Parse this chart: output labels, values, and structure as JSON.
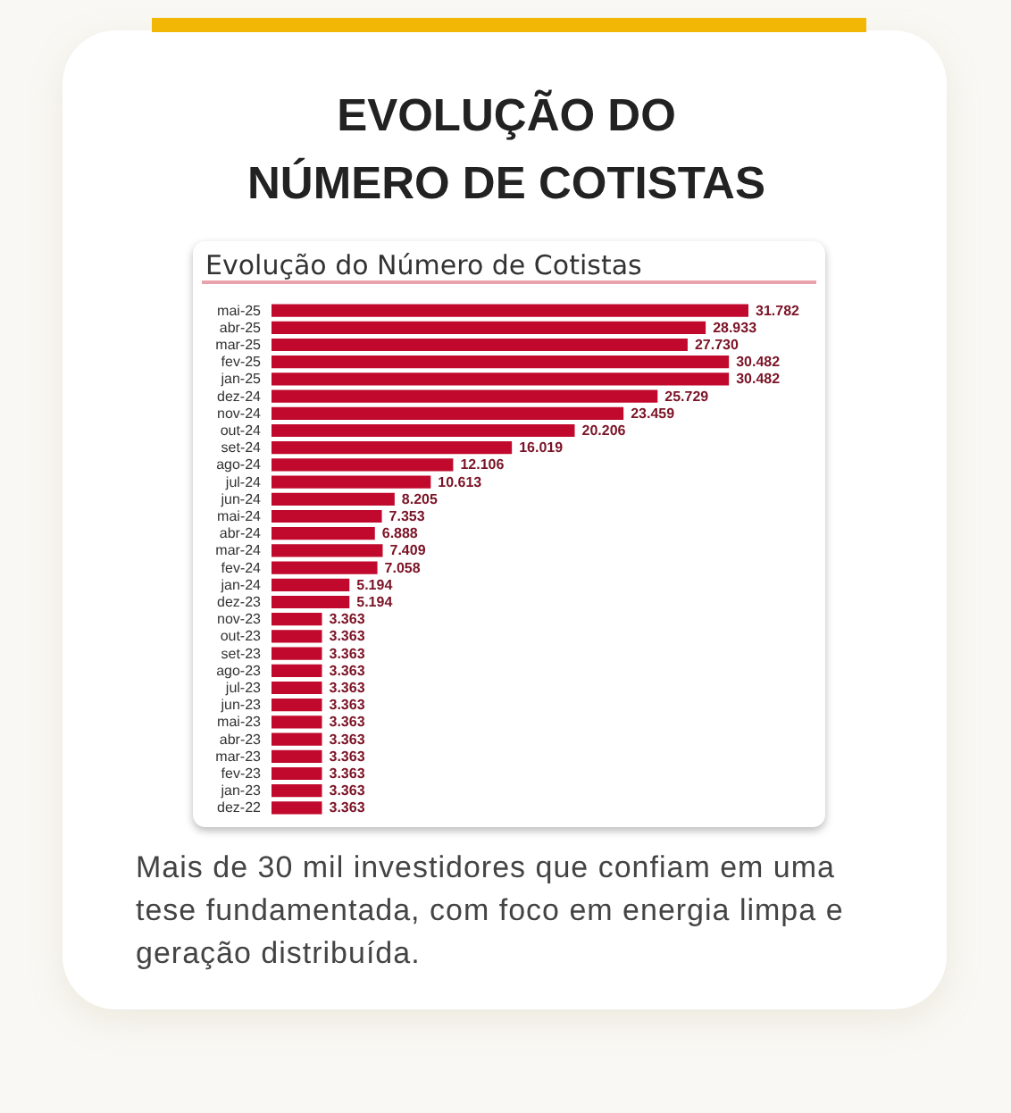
{
  "chart_data": {
    "type": "bar",
    "orientation": "horizontal",
    "title": "EVOLUÇÃO DO NÚMERO DE COTISTAS",
    "subtitle": "Evolução do Número de Cotistas",
    "categories": [
      "mai-25",
      "abr-25",
      "mar-25",
      "fev-25",
      "jan-25",
      "dez-24",
      "nov-24",
      "out-24",
      "set-24",
      "ago-24",
      "jul-24",
      "jun-24",
      "mai-24",
      "abr-24",
      "mar-24",
      "fev-24",
      "jan-24",
      "dez-23",
      "nov-23",
      "out-23",
      "set-23",
      "ago-23",
      "jul-23",
      "jun-23",
      "mai-23",
      "abr-23",
      "mar-23",
      "fev-23",
      "jan-23",
      "dez-22"
    ],
    "values": [
      31782,
      28933,
      27730,
      30482,
      30482,
      25729,
      23459,
      20206,
      16019,
      12106,
      10613,
      8205,
      7353,
      6888,
      7409,
      7058,
      5194,
      5194,
      3363,
      3363,
      3363,
      3363,
      3363,
      3363,
      3363,
      3363,
      3363,
      3363,
      3363,
      3363
    ],
    "value_labels": [
      "31.782",
      "28.933",
      "27.730",
      "30.482",
      "30.482",
      "25.729",
      "23.459",
      "20.206",
      "16.019",
      "12.106",
      "10.613",
      "8.205",
      "7.353",
      "6.888",
      "7.409",
      "7.058",
      "5.194",
      "5.194",
      "3.363",
      "3.363",
      "3.363",
      "3.363",
      "3.363",
      "3.363",
      "3.363",
      "3.363",
      "3.363",
      "3.363",
      "3.363",
      "3.363"
    ],
    "color": "#c1092d",
    "tick_labels": "y",
    "grid": false,
    "annotations": [
      "Mais de 30 mil investidores que confiam em uma tese fundamentada, com foco em energia limpa e geração distribuída."
    ]
  }
}
